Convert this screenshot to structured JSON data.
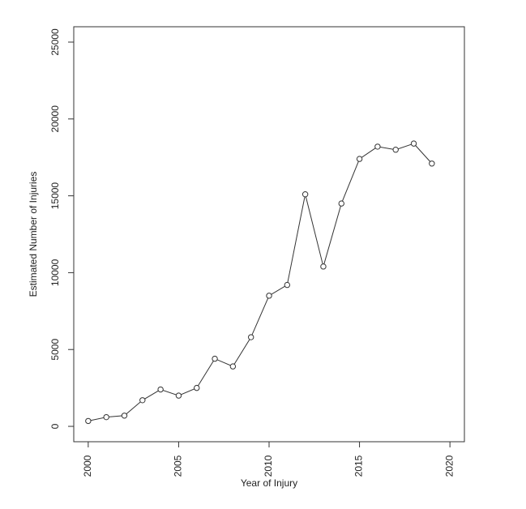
{
  "chart_data": {
    "type": "line",
    "xlabel": "Year of Injury",
    "ylabel": "Estimated Number of Injuries",
    "x": [
      2000,
      2001,
      2002,
      2003,
      2004,
      2005,
      2006,
      2007,
      2008,
      2009,
      2010,
      2011,
      2012,
      2013,
      2014,
      2015,
      2016,
      2017,
      2018,
      2019
    ],
    "values": [
      350,
      600,
      700,
      1700,
      2400,
      2000,
      2500,
      4400,
      3900,
      5800,
      8500,
      9200,
      15100,
      10400,
      14500,
      17400,
      18200,
      18000,
      18400,
      17100
    ],
    "color": "#333333",
    "xlim": [
      1999.2,
      2020.8
    ],
    "ylim": [
      -1000,
      26000
    ],
    "xticks": [
      2000,
      2005,
      2010,
      2015,
      2020
    ],
    "yticks": [
      0,
      5000,
      10000,
      15000,
      20000,
      25000
    ],
    "grid": false
  }
}
